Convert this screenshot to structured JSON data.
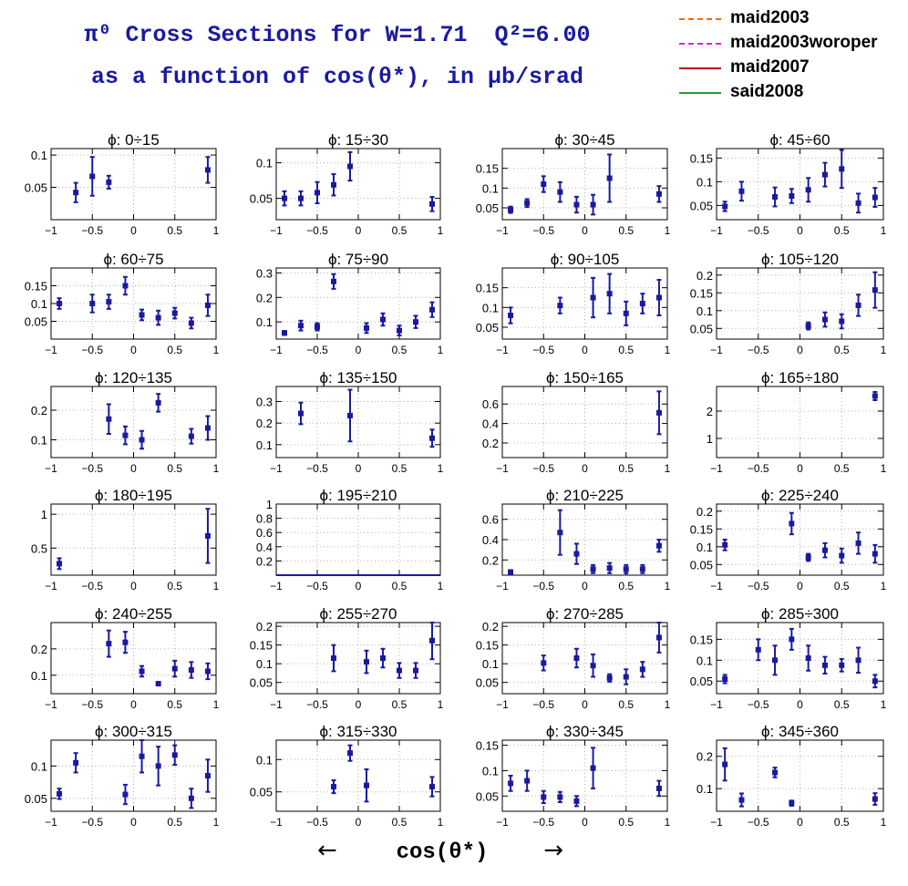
{
  "header": {
    "title_line1": "π⁰ Cross Sections for W=1.71  Q²=6.00",
    "title_line2": "as a function of cos(θ*), in μb/srad"
  },
  "legend": [
    {
      "label": "maid2003",
      "color": "#e8700a",
      "style": "dashdot"
    },
    {
      "label": "maid2003woroper",
      "color": "#e020e0",
      "style": "dashed"
    },
    {
      "label": "maid2007",
      "color": "#c00000",
      "style": "solid"
    },
    {
      "label": "said2008",
      "color": "#20a020",
      "style": "solid"
    }
  ],
  "footer": {
    "xlabel": "cos(θ*)",
    "arrow_left": "←",
    "arrow_right": "→"
  },
  "chart_data": [
    {
      "type": "scatter",
      "title": "ϕ:  0÷15",
      "xlim": [
        -1,
        1
      ],
      "ylim": [
        0.0,
        0.11
      ],
      "yticks": [
        0.05,
        0.1
      ],
      "ytick_labels": [
        "0.05",
        "0.1"
      ],
      "series": [
        {
          "x": [
            -0.7,
            -0.5,
            -0.3,
            0.9
          ],
          "y": [
            0.042,
            0.067,
            0.058,
            0.077
          ],
          "yerr": [
            0.015,
            0.03,
            0.01,
            0.02
          ]
        }
      ]
    },
    {
      "type": "scatter",
      "title": "ϕ:  15÷30",
      "xlim": [
        -1,
        1
      ],
      "ylim": [
        0.02,
        0.12
      ],
      "yticks": [
        0.05,
        0.1
      ],
      "ytick_labels": [
        "0.05",
        "0.1"
      ],
      "series": [
        {
          "x": [
            -0.9,
            -0.7,
            -0.5,
            -0.3,
            -0.1,
            0.9
          ],
          "y": [
            0.05,
            0.05,
            0.058,
            0.069,
            0.095,
            0.042
          ],
          "yerr": [
            0.01,
            0.01,
            0.015,
            0.015,
            0.02,
            0.01
          ]
        }
      ]
    },
    {
      "type": "scatter",
      "title": "ϕ:  30÷45",
      "xlim": [
        -1,
        1
      ],
      "ylim": [
        0.02,
        0.2
      ],
      "yticks": [
        0.05,
        0.1,
        0.15
      ],
      "ytick_labels": [
        "0.05",
        "0.1",
        "0.15"
      ],
      "series": [
        {
          "x": [
            -0.9,
            -0.7,
            -0.5,
            -0.3,
            -0.1,
            0.1,
            0.3,
            0.9
          ],
          "y": [
            0.045,
            0.062,
            0.11,
            0.09,
            0.058,
            0.058,
            0.125,
            0.085
          ],
          "yerr": [
            0.008,
            0.01,
            0.02,
            0.025,
            0.02,
            0.025,
            0.06,
            0.02
          ]
        }
      ]
    },
    {
      "type": "scatter",
      "title": "ϕ:  45÷60",
      "xlim": [
        -1,
        1
      ],
      "ylim": [
        0.02,
        0.17
      ],
      "yticks": [
        0.05,
        0.1,
        0.15
      ],
      "ytick_labels": [
        "0.05",
        "0.1",
        "0.15"
      ],
      "series": [
        {
          "x": [
            -0.9,
            -0.7,
            -0.3,
            -0.1,
            0.1,
            0.3,
            0.5,
            0.7,
            0.9
          ],
          "y": [
            0.048,
            0.08,
            0.068,
            0.07,
            0.083,
            0.115,
            0.127,
            0.055,
            0.067
          ],
          "yerr": [
            0.01,
            0.02,
            0.02,
            0.015,
            0.025,
            0.025,
            0.04,
            0.02,
            0.02
          ]
        }
      ]
    },
    {
      "type": "scatter",
      "title": "ϕ:  60÷75",
      "xlim": [
        -1,
        1
      ],
      "ylim": [
        0.0,
        0.2
      ],
      "yticks": [
        0.05,
        0.1,
        0.15
      ],
      "ytick_labels": [
        "0.05",
        "0.1",
        "0.15"
      ],
      "series": [
        {
          "x": [
            -0.9,
            -0.5,
            -0.3,
            -0.1,
            0.1,
            0.3,
            0.5,
            0.7,
            0.9
          ],
          "y": [
            0.1,
            0.1,
            0.105,
            0.15,
            0.068,
            0.06,
            0.073,
            0.045,
            0.095
          ],
          "yerr": [
            0.015,
            0.025,
            0.02,
            0.025,
            0.015,
            0.02,
            0.015,
            0.015,
            0.03
          ]
        }
      ]
    },
    {
      "type": "scatter",
      "title": "ϕ:  75÷90",
      "xlim": [
        -1,
        1
      ],
      "ylim": [
        0.03,
        0.32
      ],
      "yticks": [
        0.1,
        0.2,
        0.3
      ],
      "ytick_labels": [
        "0.1",
        "0.2",
        "0.3"
      ],
      "series": [
        {
          "x": [
            -0.9,
            -0.7,
            -0.5,
            -0.3,
            0.1,
            0.3,
            0.5,
            0.7,
            0.9
          ],
          "y": [
            0.055,
            0.085,
            0.08,
            0.265,
            0.075,
            0.11,
            0.065,
            0.1,
            0.15
          ],
          "yerr": [
            0.008,
            0.02,
            0.015,
            0.03,
            0.02,
            0.025,
            0.02,
            0.025,
            0.03
          ]
        }
      ]
    },
    {
      "type": "scatter",
      "title": "ϕ:  90÷105",
      "xlim": [
        -1,
        1
      ],
      "ylim": [
        0.02,
        0.2
      ],
      "yticks": [
        0.05,
        0.1,
        0.15
      ],
      "ytick_labels": [
        "0.05",
        "0.1",
        "0.15"
      ],
      "series": [
        {
          "x": [
            -0.9,
            -0.3,
            0.1,
            0.3,
            0.5,
            0.7,
            0.9
          ],
          "y": [
            0.08,
            0.105,
            0.125,
            0.135,
            0.085,
            0.11,
            0.125
          ],
          "yerr": [
            0.02,
            0.02,
            0.05,
            0.05,
            0.03,
            0.025,
            0.045
          ]
        }
      ]
    },
    {
      "type": "scatter",
      "title": "ϕ:  105÷120",
      "xlim": [
        -1,
        1
      ],
      "ylim": [
        0.02,
        0.22
      ],
      "yticks": [
        0.05,
        0.1,
        0.15,
        0.2
      ],
      "ytick_labels": [
        "0.05",
        "0.1",
        "0.15",
        "0.2"
      ],
      "series": [
        {
          "x": [
            0.1,
            0.3,
            0.5,
            0.7,
            0.9
          ],
          "y": [
            0.057,
            0.075,
            0.07,
            0.115,
            0.158
          ],
          "yerr": [
            0.01,
            0.02,
            0.02,
            0.03,
            0.05
          ]
        }
      ]
    },
    {
      "type": "scatter",
      "title": "ϕ:  120÷135",
      "xlim": [
        -1,
        1
      ],
      "ylim": [
        0.04,
        0.28
      ],
      "yticks": [
        0.1,
        0.2
      ],
      "ytick_labels": [
        "0.1",
        "0.2"
      ],
      "series": [
        {
          "x": [
            -0.3,
            -0.1,
            0.1,
            0.3,
            0.7,
            0.9
          ],
          "y": [
            0.17,
            0.115,
            0.1,
            0.225,
            0.112,
            0.14
          ],
          "yerr": [
            0.05,
            0.03,
            0.03,
            0.03,
            0.025,
            0.04
          ]
        }
      ]
    },
    {
      "type": "scatter",
      "title": "ϕ:  135÷150",
      "xlim": [
        -1,
        1
      ],
      "ylim": [
        0.04,
        0.37
      ],
      "yticks": [
        0.1,
        0.2,
        0.3
      ],
      "ytick_labels": [
        "0.1",
        "0.2",
        "0.3"
      ],
      "series": [
        {
          "x": [
            -0.7,
            -0.1,
            0.9
          ],
          "y": [
            0.245,
            0.235,
            0.13
          ],
          "yerr": [
            0.05,
            0.12,
            0.04
          ]
        }
      ]
    },
    {
      "type": "scatter",
      "title": "ϕ:  150÷165",
      "xlim": [
        -1,
        1
      ],
      "ylim": [
        0.05,
        0.78
      ],
      "yticks": [
        0.2,
        0.4,
        0.6
      ],
      "ytick_labels": [
        "0.2",
        "0.4",
        "0.6"
      ],
      "series": [
        {
          "x": [
            0.9
          ],
          "y": [
            0.51
          ],
          "yerr": [
            0.22
          ]
        }
      ]
    },
    {
      "type": "scatter",
      "title": "ϕ:  165÷180",
      "xlim": [
        -1,
        1
      ],
      "ylim": [
        0.3,
        2.9
      ],
      "yticks": [
        1,
        2
      ],
      "ytick_labels": [
        "1",
        "2"
      ],
      "series": [
        {
          "x": [
            0.9
          ],
          "y": [
            2.55
          ],
          "yerr": [
            0.15
          ]
        }
      ]
    },
    {
      "type": "scatter",
      "title": "ϕ:  180÷195",
      "xlim": [
        -1,
        1
      ],
      "ylim": [
        0.1,
        1.15
      ],
      "yticks": [
        0.5,
        1
      ],
      "ytick_labels": [
        "0.5",
        "1"
      ],
      "series": [
        {
          "x": [
            -0.9,
            0.9
          ],
          "y": [
            0.27,
            0.68
          ],
          "yerr": [
            0.08,
            0.4
          ]
        }
      ]
    },
    {
      "type": "scatter",
      "title": "ϕ:  195÷210",
      "xlim": [
        -1,
        1
      ],
      "ylim": [
        0.0,
        1.0
      ],
      "yticks": [
        0.2,
        0.4,
        0.6,
        0.8,
        1
      ],
      "ytick_labels": [
        "0.2",
        "0.4",
        "0.6",
        "0.8",
        "1"
      ],
      "series": []
    },
    {
      "type": "scatter",
      "title": "ϕ:  210÷225",
      "xlim": [
        -1,
        1
      ],
      "ylim": [
        0.05,
        0.75
      ],
      "yticks": [
        0.2,
        0.4,
        0.6
      ],
      "ytick_labels": [
        "0.2",
        "0.4",
        "0.6"
      ],
      "series": [
        {
          "x": [
            -0.9,
            -0.3,
            -0.1,
            0.1,
            0.3,
            0.5,
            0.7,
            0.9
          ],
          "y": [
            0.08,
            0.47,
            0.26,
            0.11,
            0.12,
            0.11,
            0.11,
            0.34
          ],
          "yerr": [
            0.02,
            0.22,
            0.1,
            0.04,
            0.05,
            0.04,
            0.04,
            0.06
          ]
        }
      ]
    },
    {
      "type": "scatter",
      "title": "ϕ:  225÷240",
      "xlim": [
        -1,
        1
      ],
      "ylim": [
        0.02,
        0.22
      ],
      "yticks": [
        0.05,
        0.1,
        0.15,
        0.2
      ],
      "ytick_labels": [
        "0.05",
        "0.1",
        "0.15",
        "0.2"
      ],
      "series": [
        {
          "x": [
            -0.9,
            -0.1,
            0.1,
            0.3,
            0.5,
            0.7,
            0.9
          ],
          "y": [
            0.105,
            0.165,
            0.07,
            0.09,
            0.075,
            0.11,
            0.08
          ],
          "yerr": [
            0.015,
            0.03,
            0.01,
            0.02,
            0.02,
            0.03,
            0.025
          ]
        }
      ]
    },
    {
      "type": "scatter",
      "title": "ϕ:  240÷255",
      "xlim": [
        -1,
        1
      ],
      "ylim": [
        0.03,
        0.3
      ],
      "yticks": [
        0.1,
        0.2
      ],
      "ytick_labels": [
        "0.1",
        "0.2"
      ],
      "series": [
        {
          "x": [
            -0.3,
            -0.1,
            0.1,
            0.3,
            0.5,
            0.7,
            0.9
          ],
          "y": [
            0.22,
            0.225,
            0.115,
            0.068,
            0.125,
            0.12,
            0.115
          ],
          "yerr": [
            0.05,
            0.04,
            0.02,
            0.005,
            0.03,
            0.03,
            0.03
          ]
        }
      ]
    },
    {
      "type": "scatter",
      "title": "ϕ:  255÷270",
      "xlim": [
        -1,
        1
      ],
      "ylim": [
        0.02,
        0.21
      ],
      "yticks": [
        0.05,
        0.1,
        0.15,
        0.2
      ],
      "ytick_labels": [
        "0.05",
        "0.1",
        "0.15",
        "0.2"
      ],
      "series": [
        {
          "x": [
            -0.3,
            0.1,
            0.3,
            0.5,
            0.7,
            0.9
          ],
          "y": [
            0.115,
            0.105,
            0.115,
            0.082,
            0.082,
            0.162
          ],
          "yerr": [
            0.035,
            0.03,
            0.025,
            0.02,
            0.02,
            0.05
          ]
        }
      ]
    },
    {
      "type": "scatter",
      "title": "ϕ:  270÷285",
      "xlim": [
        -1,
        1
      ],
      "ylim": [
        0.02,
        0.21
      ],
      "yticks": [
        0.05,
        0.1,
        0.15,
        0.2
      ],
      "ytick_labels": [
        "0.05",
        "0.1",
        "0.15",
        "0.2"
      ],
      "series": [
        {
          "x": [
            -0.5,
            -0.1,
            0.1,
            0.3,
            0.5,
            0.7,
            0.9
          ],
          "y": [
            0.102,
            0.115,
            0.095,
            0.062,
            0.065,
            0.085,
            0.17
          ],
          "yerr": [
            0.02,
            0.025,
            0.03,
            0.01,
            0.02,
            0.02,
            0.04
          ]
        }
      ]
    },
    {
      "type": "scatter",
      "title": "ϕ:  285÷300",
      "xlim": [
        -1,
        1
      ],
      "ylim": [
        0.02,
        0.19
      ],
      "yticks": [
        0.05,
        0.1,
        0.15
      ],
      "ytick_labels": [
        "0.05",
        "0.1",
        "0.15"
      ],
      "series": [
        {
          "x": [
            -0.9,
            -0.5,
            -0.3,
            -0.1,
            0.1,
            0.3,
            0.5,
            0.7,
            0.9
          ],
          "y": [
            0.055,
            0.125,
            0.1,
            0.15,
            0.105,
            0.088,
            0.088,
            0.1,
            0.05
          ],
          "yerr": [
            0.01,
            0.025,
            0.035,
            0.025,
            0.03,
            0.02,
            0.015,
            0.03,
            0.015
          ]
        }
      ]
    },
    {
      "type": "scatter",
      "title": "ϕ:  300÷315",
      "xlim": [
        -1,
        1
      ],
      "ylim": [
        0.03,
        0.14
      ],
      "yticks": [
        0.05,
        0.1
      ],
      "ytick_labels": [
        "0.05",
        "0.1"
      ],
      "series": [
        {
          "x": [
            -0.9,
            -0.7,
            -0.1,
            0.1,
            0.3,
            0.5,
            0.7,
            0.9
          ],
          "y": [
            0.057,
            0.105,
            0.056,
            0.115,
            0.1,
            0.117,
            0.05,
            0.085
          ],
          "yerr": [
            0.008,
            0.015,
            0.015,
            0.025,
            0.03,
            0.015,
            0.015,
            0.025
          ]
        }
      ]
    },
    {
      "type": "scatter",
      "title": "ϕ:  315÷330",
      "xlim": [
        -1,
        1
      ],
      "ylim": [
        0.02,
        0.13
      ],
      "yticks": [
        0.05,
        0.1
      ],
      "ytick_labels": [
        "0.05",
        "0.1"
      ],
      "series": [
        {
          "x": [
            -0.3,
            -0.1,
            0.1,
            0.9
          ],
          "y": [
            0.058,
            0.11,
            0.06,
            0.058
          ],
          "yerr": [
            0.01,
            0.012,
            0.025,
            0.015
          ]
        }
      ]
    },
    {
      "type": "scatter",
      "title": "ϕ:  330÷345",
      "xlim": [
        -1,
        1
      ],
      "ylim": [
        0.02,
        0.16
      ],
      "yticks": [
        0.05,
        0.1,
        0.15
      ],
      "ytick_labels": [
        "0.05",
        "0.1",
        "0.15"
      ],
      "series": [
        {
          "x": [
            -0.9,
            -0.7,
            -0.5,
            -0.3,
            -0.1,
            0.1,
            0.9
          ],
          "y": [
            0.075,
            0.08,
            0.048,
            0.048,
            0.04,
            0.105,
            0.065
          ],
          "yerr": [
            0.015,
            0.02,
            0.012,
            0.01,
            0.01,
            0.04,
            0.015
          ]
        }
      ]
    },
    {
      "type": "scatter",
      "title": "ϕ:  345÷360",
      "xlim": [
        -1,
        1
      ],
      "ylim": [
        0.03,
        0.25
      ],
      "yticks": [
        0.1,
        0.2
      ],
      "ytick_labels": [
        "0.1",
        "0.2"
      ],
      "series": [
        {
          "x": [
            -0.9,
            -0.7,
            -0.3,
            -0.1,
            0.9
          ],
          "y": [
            0.175,
            0.065,
            0.15,
            0.055,
            0.068
          ],
          "yerr": [
            0.05,
            0.02,
            0.015,
            0.008,
            0.018
          ]
        }
      ]
    }
  ]
}
